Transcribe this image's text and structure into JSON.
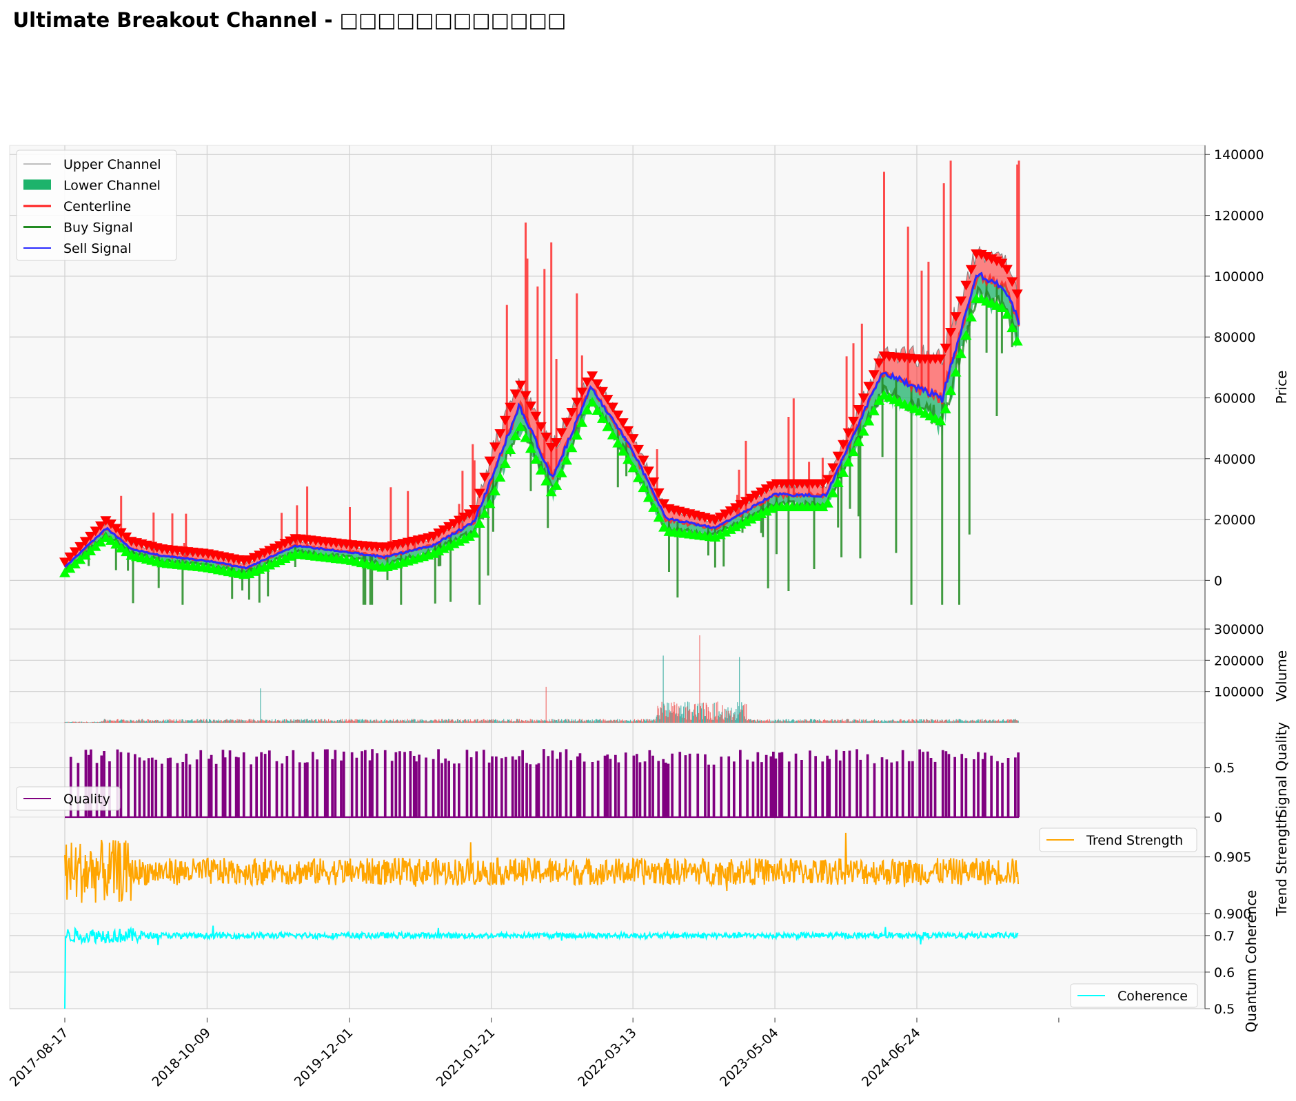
{
  "title": "Ultimate Breakout Channel - □□□□□□□□□□□□",
  "colors": {
    "panel_bg": "#f8f8f8",
    "grid": "#d0d0d0",
    "upper": "#808080",
    "lower_fill": "#1db36b",
    "centerline": "#ff2020",
    "buy": "#228b22",
    "sell": "#2a2aff",
    "buy_marker": "#00ff00",
    "sell_marker": "#ff0000",
    "volume_up": "#26a69a",
    "volume_down": "#ef5350",
    "quality": "#800080",
    "trend": "#ffa500",
    "coherence": "#00ffff"
  },
  "x_axis": {
    "tick_labels": [
      "2017-08-17",
      "2018-10-09",
      "2019-12-01",
      "2021-01-21",
      "2022-03-13",
      "2023-05-04",
      "2024-06-24"
    ]
  },
  "chart_data": [
    {
      "panel": "price",
      "type": "line",
      "ylabel": "Price",
      "ylim": [
        -16000,
        143000
      ],
      "yticks": [
        0,
        20000,
        40000,
        60000,
        80000,
        100000,
        120000,
        140000
      ],
      "legend": {
        "placement": "upper-left",
        "entries": [
          "Upper Channel",
          "Lower Channel",
          "Centerline",
          "Buy Signal",
          "Sell Signal"
        ]
      },
      "x": [
        "2017-08-17",
        "2017-12-17",
        "2018-03-01",
        "2018-06-01",
        "2018-10-09",
        "2019-02-01",
        "2019-06-26",
        "2019-12-01",
        "2020-03-13",
        "2020-08-01",
        "2020-12-01",
        "2021-01-21",
        "2021-04-14",
        "2021-07-20",
        "2021-11-10",
        "2022-03-13",
        "2022-06-18",
        "2022-11-10",
        "2023-05-04",
        "2023-10-01",
        "2024-03-14",
        "2024-06-24",
        "2024-09-06",
        "2024-12-17",
        "2025-03-10",
        "2025-04-20"
      ],
      "series": [
        {
          "name": "Upper Channel",
          "values": [
            5200,
            19000,
            12000,
            9500,
            8000,
            5500,
            13000,
            11000,
            10000,
            13500,
            22000,
            40000,
            64000,
            42000,
            67000,
            46000,
            23000,
            19000,
            31000,
            31000,
            73000,
            72000,
            72000,
            107000,
            103000,
            92000
          ]
        },
        {
          "name": "Centerline",
          "values": [
            4300,
            17000,
            10500,
            8000,
            6500,
            4000,
            11500,
            9500,
            7500,
            11500,
            19000,
            33000,
            58000,
            34000,
            64000,
            42000,
            20000,
            17000,
            28000,
            28000,
            68000,
            63000,
            60000,
            100000,
            97000,
            84000
          ]
        },
        {
          "name": "Lower Channel",
          "values": [
            3300,
            15000,
            9000,
            6500,
            5000,
            2600,
            9500,
            7500,
            5000,
            9500,
            16000,
            27000,
            52000,
            29000,
            60000,
            38000,
            17000,
            15000,
            25000,
            25000,
            62000,
            57000,
            53000,
            94000,
            90000,
            78000
          ]
        },
        {
          "name": "Sell Signal",
          "values": [
            4300,
            17200,
            10300,
            8100,
            6400,
            4100,
            11400,
            9300,
            7600,
            11400,
            19200,
            33500,
            57500,
            33500,
            63500,
            42500,
            20300,
            17200,
            28300,
            27800,
            68500,
            63500,
            59500,
            101000,
            96000,
            85000
          ]
        }
      ]
    },
    {
      "panel": "volume",
      "type": "bar",
      "ylabel": "Volume",
      "ylim": [
        0,
        300000
      ],
      "yticks": [
        100000,
        200000,
        300000
      ],
      "peaks": [
        {
          "x": "2019-03-15",
          "value": 110000
        },
        {
          "x": "2021-07-01",
          "value": 115000
        },
        {
          "x": "2022-06-10",
          "value": 215000
        },
        {
          "x": "2022-09-25",
          "value": 280000
        },
        {
          "x": "2023-01-20",
          "value": 210000
        }
      ]
    },
    {
      "panel": "quality",
      "type": "line",
      "ylabel": "Signal Quality",
      "ylim": [
        0,
        0.95
      ],
      "yticks": [
        0.0,
        0.5
      ],
      "legend": {
        "placement": "lower-left",
        "entries": [
          "Quality"
        ]
      },
      "typical_level": 0.6
    },
    {
      "panel": "trend",
      "type": "line",
      "ylabel": "Trend Strength",
      "ylim": [
        0.9,
        0.9085
      ],
      "yticks": [
        0.9,
        0.905
      ],
      "tick_labels": [
        "0.900",
        "0.905"
      ],
      "legend": {
        "placement": "upper-right",
        "entries": [
          "Trend Strength"
        ]
      },
      "typical_level": 0.9037
    },
    {
      "panel": "coherence",
      "type": "line",
      "ylabel": "Quantum Coherence",
      "ylim": [
        0.5,
        0.76
      ],
      "yticks": [
        0.5,
        0.6,
        0.7
      ],
      "legend": {
        "placement": "lower-right",
        "entries": [
          "Coherence"
        ]
      },
      "typical_level": 0.7
    }
  ]
}
